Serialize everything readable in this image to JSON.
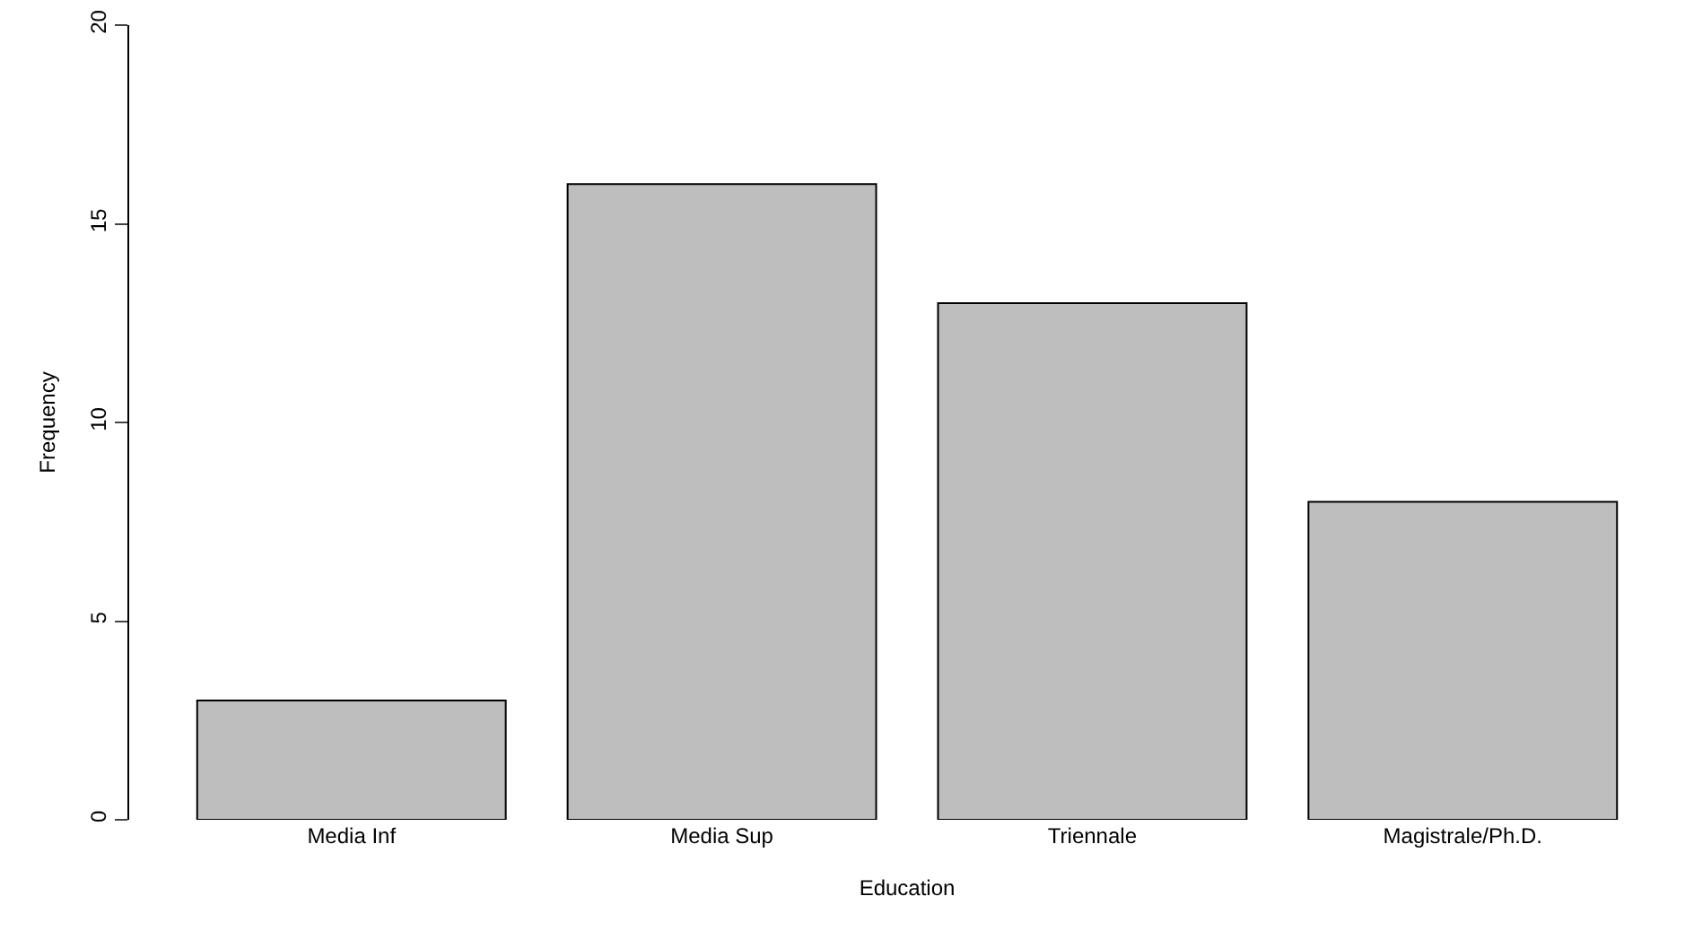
{
  "chart_data": {
    "type": "bar",
    "xlabel": "Education",
    "ylabel": "Frequency",
    "categories": [
      "Media Inf",
      "Media Sup",
      "Triennale",
      "Magistrale/Ph.D."
    ],
    "values": [
      3,
      16,
      13,
      8
    ],
    "color": "#bebebe",
    "ylim": [
      0,
      20
    ],
    "yticks": [
      0,
      5,
      10,
      15,
      20
    ],
    "grid": false
  }
}
